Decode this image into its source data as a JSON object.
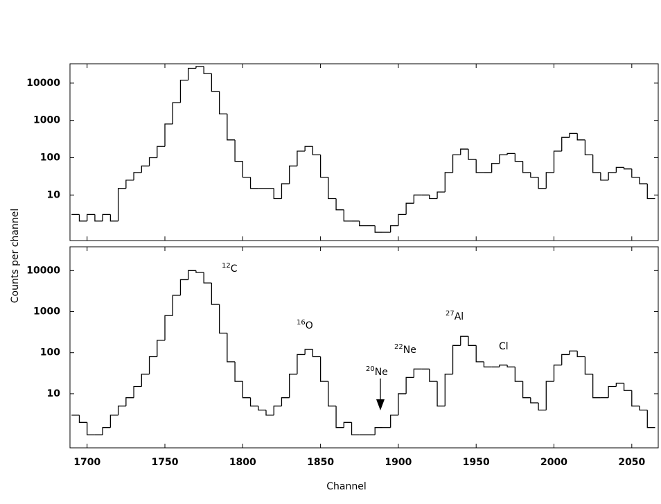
{
  "x_label": "Channel",
  "y_label": "Counts per channel",
  "chart_data": [
    {
      "type": "histogram",
      "log_y": true,
      "color": "#000000",
      "bins": [
        1690,
        1695,
        1700,
        1705,
        1710,
        1715,
        1720,
        1725,
        1730,
        1735,
        1740,
        1745,
        1750,
        1755,
        1760,
        1765,
        1770,
        1775,
        1780,
        1785,
        1790,
        1795,
        1800,
        1805,
        1810,
        1815,
        1820,
        1825,
        1830,
        1835,
        1840,
        1845,
        1850,
        1855,
        1860,
        1865,
        1870,
        1875,
        1880,
        1885,
        1890,
        1895,
        1900,
        1905,
        1910,
        1915,
        1920,
        1925,
        1930,
        1935,
        1940,
        1945,
        1950,
        1955,
        1960,
        1965,
        1970,
        1975,
        1980,
        1985,
        1990,
        1995,
        2000,
        2005,
        2010,
        2015,
        2020,
        2025,
        2030,
        2035,
        2040,
        2045,
        2050,
        2055,
        2060,
        2065
      ],
      "values": [
        3,
        2,
        3,
        2,
        3,
        2,
        15,
        25,
        40,
        60,
        100,
        200,
        800,
        3000,
        12000,
        25000,
        28000,
        18000,
        6000,
        1500,
        300,
        80,
        30,
        15,
        15,
        15,
        8,
        20,
        60,
        150,
        200,
        120,
        30,
        8,
        4,
        2,
        2,
        1.5,
        1.5,
        1,
        1,
        1.5,
        3,
        6,
        10,
        10,
        8,
        12,
        40,
        120,
        170,
        90,
        40,
        40,
        70,
        120,
        130,
        80,
        40,
        30,
        15,
        40,
        150,
        350,
        450,
        300,
        120,
        40,
        25,
        40,
        55,
        50,
        30,
        20,
        8
      ],
      "xlim": [
        1689,
        2067
      ],
      "ylim": [
        0.6,
        33000
      ],
      "yticks": [
        10,
        100,
        1000,
        10000
      ]
    },
    {
      "type": "histogram",
      "log_y": true,
      "color": "#000000",
      "bins": [
        1690,
        1695,
        1700,
        1705,
        1710,
        1715,
        1720,
        1725,
        1730,
        1735,
        1740,
        1745,
        1750,
        1755,
        1760,
        1765,
        1770,
        1775,
        1780,
        1785,
        1790,
        1795,
        1800,
        1805,
        1810,
        1815,
        1820,
        1825,
        1830,
        1835,
        1840,
        1845,
        1850,
        1855,
        1860,
        1865,
        1870,
        1875,
        1880,
        1885,
        1890,
        1895,
        1900,
        1905,
        1910,
        1915,
        1920,
        1925,
        1930,
        1935,
        1940,
        1945,
        1950,
        1955,
        1960,
        1965,
        1970,
        1975,
        1980,
        1985,
        1990,
        1995,
        2000,
        2005,
        2010,
        2015,
        2020,
        2025,
        2030,
        2035,
        2040,
        2045,
        2050,
        2055,
        2060,
        2065
      ],
      "values": [
        3,
        2,
        1,
        1,
        1.5,
        3,
        5,
        8,
        15,
        30,
        80,
        200,
        800,
        2500,
        6000,
        10000,
        9000,
        5000,
        1500,
        300,
        60,
        20,
        8,
        5,
        4,
        3,
        5,
        8,
        30,
        90,
        120,
        80,
        20,
        5,
        1.5,
        2,
        1,
        1,
        1,
        1.5,
        1.5,
        3,
        10,
        25,
        40,
        40,
        20,
        5,
        30,
        150,
        250,
        150,
        60,
        45,
        45,
        50,
        45,
        20,
        8,
        6,
        4,
        20,
        50,
        90,
        110,
        80,
        30,
        8,
        8,
        15,
        18,
        12,
        5,
        4,
        1.5
      ],
      "xlim": [
        1689,
        2067
      ],
      "ylim": [
        0.48,
        38000
      ],
      "yticks": [
        10,
        100,
        1000,
        10000
      ],
      "xticks": [
        1700,
        1750,
        1800,
        1850,
        1900,
        1950,
        2000,
        2050
      ],
      "annotations": [
        {
          "sup": "12",
          "text": "C"
        },
        {
          "sup": "16",
          "text": "O"
        },
        {
          "sup": "20",
          "text": "Ne"
        },
        {
          "sup": "22",
          "text": "Ne"
        },
        {
          "sup": "27",
          "text": "Al"
        },
        {
          "text": "Cl"
        }
      ]
    }
  ]
}
